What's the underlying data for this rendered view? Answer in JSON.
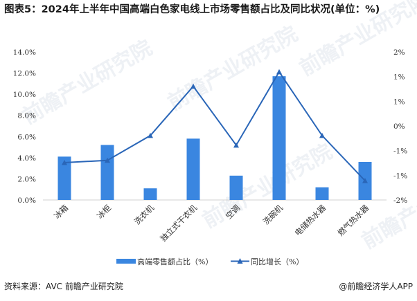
{
  "title": "图表5：2024年上半年中国高端白色家电线上市场零售额占比及同比状况(单位：%)",
  "footer": {
    "source": "资料来源：AVC 前瞻产业研究院",
    "brand": "@前瞻经济学人APP"
  },
  "watermark": "前瞻产业研究院",
  "colors": {
    "bar": "#3a86e0",
    "line": "#2a66b8"
  },
  "chart_data": {
    "type": "bar+line",
    "categories": [
      "冰箱",
      "冰柜",
      "洗衣机",
      "独立式干衣机",
      "空调",
      "洗碗机",
      "电储热水器",
      "燃气热水器"
    ],
    "series": [
      {
        "name": "高端零售额占比（%）",
        "type": "bar",
        "axis": "left",
        "values": [
          4.1,
          5.2,
          1.1,
          5.8,
          2.3,
          11.7,
          1.2,
          3.6
        ]
      },
      {
        "name": "同比增长（%）",
        "type": "line",
        "axis": "right",
        "values": [
          -0.99,
          -0.93,
          -0.26,
          1.07,
          -0.52,
          1.46,
          -0.26,
          -1.48
        ]
      }
    ],
    "left_axis": {
      "ylim": [
        0,
        14
      ],
      "ticks": [
        "0.0%",
        "2.0%",
        "4.0%",
        "6.0%",
        "8.0%",
        "10.0%",
        "12.0%",
        "14.0%"
      ]
    },
    "right_axis": {
      "ylim": [
        -2,
        2
      ],
      "ticks": [
        "-2%",
        "-1%",
        "-1%",
        "0%",
        "1%",
        "1%",
        "2%"
      ]
    },
    "legend": "bottom",
    "grid": false
  }
}
